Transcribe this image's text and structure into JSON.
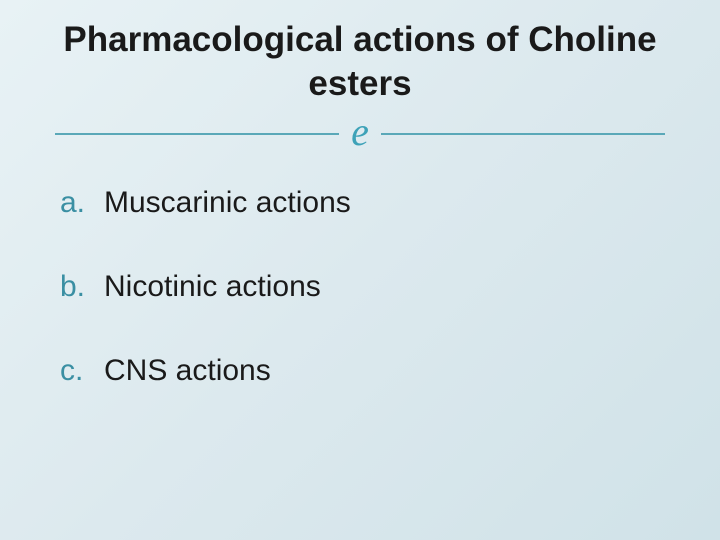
{
  "slide": {
    "background_gradient": [
      "#e8f2f5",
      "#dce9ee",
      "#d0e2e8"
    ],
    "title": "Pharmacological actions of Choline esters",
    "title_fontsize": 35,
    "title_color": "#1a1a1a",
    "divider": {
      "line_color": "#5aa8b8",
      "flourish": "e",
      "flourish_color": "#3da2b8",
      "flourish_fontsize": 40
    },
    "items": [
      {
        "letter": "a.",
        "text": "Muscarinic actions"
      },
      {
        "letter": "b.",
        "text": "Nicotinic actions"
      },
      {
        "letter": "c.",
        "text": "CNS actions"
      }
    ],
    "item_fontsize": 30,
    "letter_color": "#3a8fa3",
    "text_color": "#1a1a1a",
    "item_spacing": 50
  }
}
